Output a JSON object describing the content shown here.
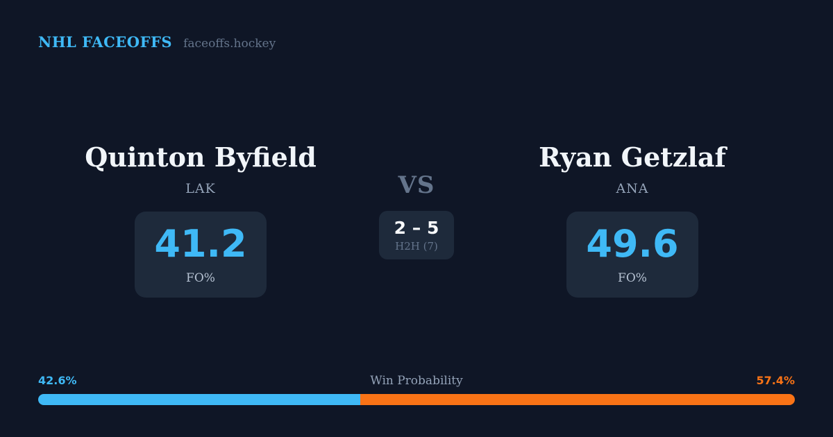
{
  "header": {
    "brand": "NHL FACEOFFS",
    "domain": "faceoffs.hockey",
    "brand_color": "#3fb9f6"
  },
  "players": {
    "left": {
      "name": "Quinton Byfield",
      "team": "LAK",
      "stat_value": "41.2",
      "stat_label": "FO%"
    },
    "right": {
      "name": "Ryan Getzlaf",
      "team": "ANA",
      "stat_value": "49.6",
      "stat_label": "FO%"
    }
  },
  "versus": {
    "label": "VS",
    "h2h_score": "2 – 5",
    "h2h_label": "H2H (7)"
  },
  "win_probability": {
    "title": "Win Probability",
    "left_pct": "42.6%",
    "right_pct": "57.4%",
    "left_value": 42.6,
    "right_value": 57.4,
    "left_color": "#3fb9f6",
    "right_color": "#f97316"
  },
  "colors": {
    "background": "#0f1626",
    "box_background": "#1e2a3b",
    "accent_blue": "#3fb9f6",
    "accent_orange": "#f97316",
    "text_primary": "#f1f5f9",
    "text_muted": "#94a3b8"
  },
  "chart_data": {
    "type": "bar",
    "title": "Win Probability",
    "categories": [
      "Quinton Byfield (LAK)",
      "Ryan Getzlaf (ANA)"
    ],
    "series": [
      {
        "name": "Faceoff Win % (FO%)",
        "values": [
          41.2,
          49.6
        ]
      },
      {
        "name": "Win Probability %",
        "values": [
          42.6,
          57.4
        ]
      },
      {
        "name": "Head-to-head faceoff wins (7 total)",
        "values": [
          2,
          5
        ]
      }
    ],
    "xlim": [
      0,
      100
    ],
    "legend_position": "none",
    "annotations": [
      "H2H score 2 – 5 across 7 matchups",
      "blue = LAK player, orange = ANA player"
    ]
  }
}
